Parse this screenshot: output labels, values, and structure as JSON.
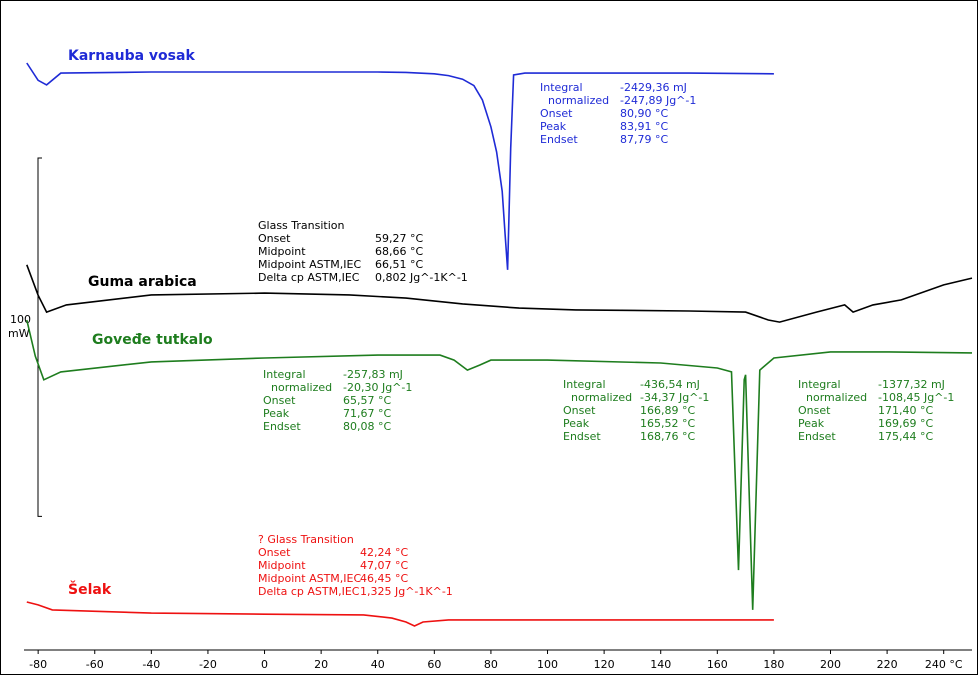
{
  "chart_data": {
    "type": "line",
    "xlim": [
      -85,
      250
    ],
    "ylim": [
      0,
      180
    ],
    "xticks": [
      -80,
      -60,
      -40,
      -20,
      0,
      20,
      40,
      60,
      80,
      100,
      120,
      140,
      160,
      180,
      200,
      220,
      {
        "value": 240,
        "label": "240 °C"
      }
    ],
    "scale_bar": {
      "value": 100,
      "unit": "mW"
    },
    "series": [
      {
        "name": "Karnauba vosak",
        "color": "#1f2bd6",
        "x": [
          -84,
          -80,
          -77,
          -72,
          -40,
          0,
          40,
          50,
          60,
          65,
          70,
          74,
          77,
          80,
          82,
          84,
          85,
          85.9,
          87,
          88,
          92,
          120,
          150,
          180
        ],
        "values": [
          163.8,
          159,
          157.7,
          161,
          161.3,
          161.3,
          161.3,
          161.2,
          160.8,
          160.3,
          159.3,
          157.5,
          153.5,
          146,
          139,
          128,
          116,
          106.1,
          140,
          160.5,
          161,
          161,
          161,
          160.8
        ],
        "annotations": [
          {
            "title": null,
            "rows": [
              [
                "Integral",
                "-2429,36 mJ"
              ],
              [
                "normalized",
                "-247,89 Jg^-1"
              ],
              [
                "Onset",
                "80,90 °C"
              ],
              [
                "Peak",
                "83,91 °C"
              ],
              [
                "Endset",
                "87,79 °C"
              ]
            ]
          }
        ]
      },
      {
        "name": "Guma arabica",
        "color": "#000000",
        "x": [
          -84,
          -80,
          -77,
          -70,
          -40,
          0,
          30,
          50,
          70,
          90,
          110,
          150,
          170,
          178,
          182,
          195,
          205,
          208,
          215,
          225,
          240,
          250
        ],
        "values": [
          107.5,
          99,
          94.3,
          96.3,
          99.1,
          99.6,
          99.1,
          98.2,
          96.6,
          95.4,
          94.9,
          94.6,
          94.3,
          92.1,
          91.5,
          94.3,
          96.3,
          94.3,
          96.3,
          97.7,
          101.9,
          103.8
        ],
        "annotations": [
          {
            "title": "Glass Transition",
            "rows": [
              [
                "Onset",
                "59,27 °C"
              ],
              [
                "Midpoint",
                "68,66 °C"
              ],
              [
                "Midpoint ASTM,IEC",
                "66,51 °C"
              ],
              [
                "Delta cp ASTM,IEC",
                "0,802 Jg^-1K^-1"
              ]
            ]
          }
        ]
      },
      {
        "name": "Goveđe tutkalo",
        "color": "#1e7d1e",
        "x": [
          -84,
          -81,
          -78,
          -72,
          -40,
          0,
          40,
          62,
          67,
          71.7,
          76,
          80,
          100,
          140,
          160,
          165,
          167.5,
          169.5,
          170,
          172.5,
          175,
          180,
          200,
          220,
          250
        ],
        "values": [
          92.1,
          82,
          75.4,
          77.6,
          80.4,
          81.5,
          82.3,
          82.3,
          80.9,
          78.1,
          79.5,
          80.9,
          80.9,
          80.1,
          78.7,
          77.6,
          22.3,
          75.4,
          76.8,
          11.2,
          78.1,
          81.5,
          83.2,
          83.2,
          82.9
        ],
        "annotations": [
          {
            "title": null,
            "rows": [
              [
                "Integral",
                "-257,83 mJ"
              ],
              [
                "normalized",
                "-20,30 Jg^-1"
              ],
              [
                "Onset",
                "65,57 °C"
              ],
              [
                "Peak",
                "71,67 °C"
              ],
              [
                "Endset",
                "80,08 °C"
              ]
            ]
          },
          {
            "title": null,
            "rows": [
              [
                "Integral",
                "-436,54 mJ"
              ],
              [
                "normalized",
                "-34,37 Jg^-1"
              ],
              [
                "Onset",
                "166,89 °C"
              ],
              [
                "Peak",
                "165,52 °C"
              ],
              [
                "Endset",
                "168,76 °C"
              ]
            ]
          },
          {
            "title": null,
            "rows": [
              [
                "Integral",
                "-1377,32 mJ"
              ],
              [
                "normalized",
                "-108,45 Jg^-1"
              ],
              [
                "Onset",
                "171,40 °C"
              ],
              [
                "Peak",
                "169,69 °C"
              ],
              [
                "Endset",
                "175,44 °C"
              ]
            ]
          }
        ]
      },
      {
        "name": "Šelak",
        "color": "#ee1111",
        "x": [
          -84,
          -80,
          -75,
          -40,
          0,
          35,
          45,
          50,
          53,
          56,
          65,
          100,
          180
        ],
        "values": [
          13.4,
          12.6,
          11.2,
          10.3,
          10.0,
          9.8,
          8.9,
          7.8,
          6.7,
          7.8,
          8.4,
          8.4,
          8.4
        ],
        "annotations": [
          {
            "title": "? Glass Transition",
            "rows": [
              [
                "Onset",
                "42,24 °C"
              ],
              [
                "Midpoint",
                "47,07 °C"
              ],
              [
                "Midpoint ASTM,IEC",
                "46,45 °C"
              ],
              [
                "Delta cp ASTM,IEC",
                "1,325 Jg^-1K^-1"
              ]
            ]
          }
        ]
      }
    ]
  }
}
